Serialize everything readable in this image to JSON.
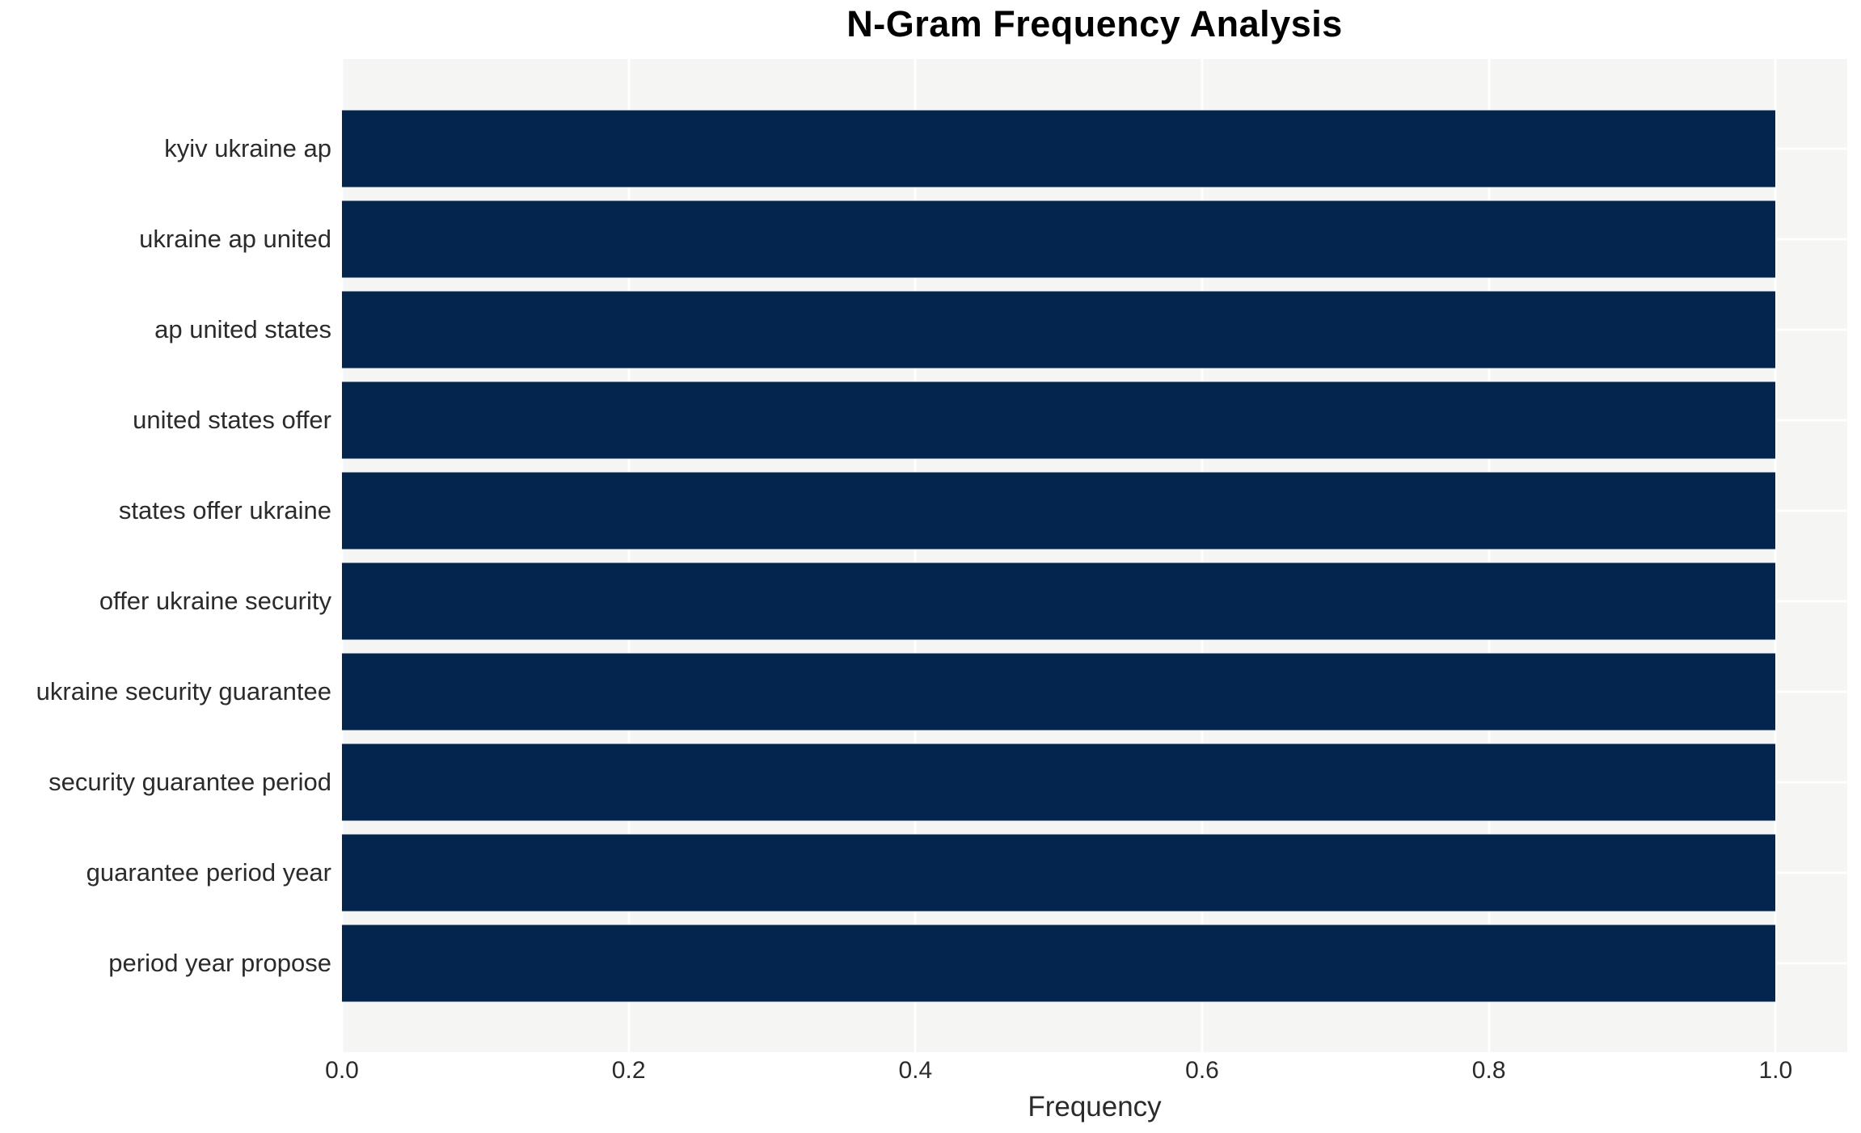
{
  "title": "N-Gram Frequency Analysis",
  "x_axis": {
    "label": "Frequency",
    "tick_labels": [
      "0.0",
      "0.2",
      "0.4",
      "0.6",
      "0.8",
      "1.0"
    ]
  },
  "y_axis": {
    "label": ""
  },
  "colors": {
    "bar": "#03254e",
    "plot_background": "#f5f5f4",
    "gridline": "#ffffff",
    "tick_text": "#2b2b2b",
    "title_text": "#000000"
  },
  "chart_data": {
    "type": "bar",
    "orientation": "horizontal",
    "title": "N-Gram Frequency Analysis",
    "xlabel": "Frequency",
    "ylabel": "",
    "categories": [
      "kyiv ukraine ap",
      "ukraine ap united",
      "ap united states",
      "united states offer",
      "states offer ukraine",
      "offer ukraine security",
      "ukraine security guarantee",
      "security guarantee period",
      "guarantee period year",
      "period year propose"
    ],
    "values": [
      1.0,
      1.0,
      1.0,
      1.0,
      1.0,
      1.0,
      1.0,
      1.0,
      1.0,
      1.0
    ],
    "x_ticks": [
      0.0,
      0.2,
      0.4,
      0.6,
      0.8,
      1.0
    ],
    "x_tick_labels": [
      "0.0",
      "0.2",
      "0.4",
      "0.6",
      "0.8",
      "1.0"
    ],
    "xlim": [
      0,
      1.05
    ],
    "grid": true,
    "grid_color": "#ffffff",
    "legend": false,
    "bar_color": "#03254e"
  }
}
